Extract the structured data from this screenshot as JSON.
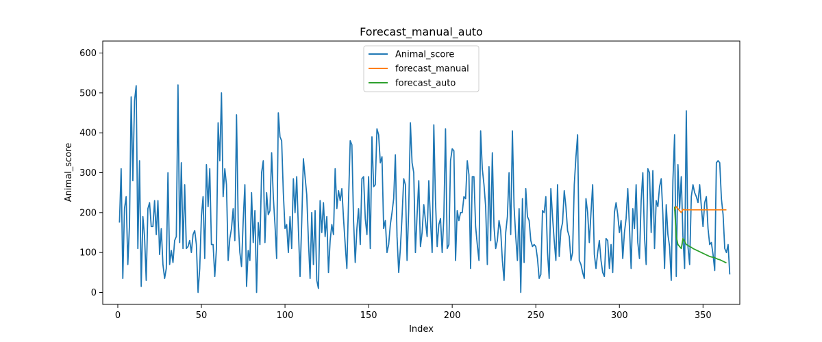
{
  "chart_data": {
    "type": "line",
    "title": "Forecast_manual_auto",
    "xlabel": "Index",
    "ylabel": "Animal_score",
    "xlim": [
      -9,
      372
    ],
    "ylim": [
      -30,
      630
    ],
    "xticks": [
      0,
      50,
      100,
      150,
      200,
      250,
      300,
      350
    ],
    "yticks": [
      0,
      100,
      200,
      300,
      400,
      500,
      600
    ],
    "grid": false,
    "legend_position": "upper center",
    "series": [
      {
        "name": "Animal_score",
        "color": "#1f77b4",
        "x_start": 1,
        "values": [
          175,
          310,
          35,
          210,
          240,
          70,
          170,
          490,
          280,
          480,
          518,
          110,
          330,
          15,
          190,
          140,
          30,
          210,
          225,
          165,
          165,
          230,
          145,
          230,
          95,
          160,
          70,
          35,
          60,
          300,
          70,
          105,
          75,
          130,
          140,
          520,
          125,
          325,
          110,
          270,
          110,
          115,
          130,
          100,
          145,
          155,
          120,
          0,
          60,
          190,
          240,
          85,
          320,
          215,
          310,
          120,
          120,
          40,
          110,
          425,
          330,
          500,
          240,
          310,
          270,
          80,
          135,
          160,
          210,
          130,
          445,
          180,
          100,
          65,
          180,
          270,
          15,
          105,
          80,
          250,
          125,
          205,
          0,
          175,
          120,
          300,
          330,
          125,
          250,
          195,
          205,
          350,
          240,
          170,
          85,
          450,
          390,
          380,
          250,
          160,
          170,
          100,
          190,
          110,
          285,
          200,
          290,
          160,
          40,
          175,
          335,
          290,
          245,
          130,
          35,
          200,
          70,
          205,
          30,
          10,
          230,
          150,
          225,
          140,
          190,
          50,
          130,
          170,
          145,
          310,
          210,
          255,
          230,
          260,
          185,
          120,
          60,
          230,
          380,
          370,
          180,
          75,
          160,
          210,
          120,
          285,
          290,
          185,
          145,
          290,
          110,
          390,
          265,
          270,
          410,
          395,
          325,
          340,
          160,
          180,
          100,
          120,
          170,
          200,
          235,
          345,
          140,
          50,
          110,
          190,
          285,
          270,
          80,
          210,
          425,
          325,
          300,
          100,
          195,
          280,
          115,
          150,
          220,
          180,
          140,
          280,
          180,
          100,
          420,
          230,
          115,
          170,
          185,
          100,
          190,
          410,
          110,
          120,
          330,
          360,
          355,
          80,
          205,
          180,
          200,
          200,
          240,
          235,
          330,
          295,
          60,
          290,
          290,
          165,
          120,
          80,
          405,
          310,
          270,
          215,
          70,
          315,
          130,
          350,
          165,
          110,
          130,
          180,
          155,
          80,
          30,
          150,
          190,
          300,
          145,
          405,
          215,
          140,
          80,
          210,
          0,
          235,
          75,
          260,
          190,
          180,
          130,
          115,
          120,
          115,
          85,
          35,
          45,
          205,
          200,
          240,
          100,
          35,
          260,
          190,
          130,
          80,
          270,
          90,
          155,
          175,
          255,
          215,
          155,
          140,
          80,
          100,
          270,
          340,
          395,
          80,
          70,
          50,
          35,
          235,
          200,
          125,
          200,
          270,
          95,
          60,
          100,
          130,
          80,
          50,
          40,
          135,
          130,
          60,
          120,
          50,
          200,
          225,
          195,
          150,
          180,
          85,
          150,
          185,
          260,
          165,
          60,
          210,
          160,
          270,
          125,
          85,
          230,
          300,
          140,
          70,
          310,
          300,
          150,
          305,
          110,
          230,
          215,
          265,
          285,
          195,
          60,
          220,
          145,
          115,
          30,
          280,
          395,
          40,
          320,
          210,
          290,
          140,
          60,
          455,
          115,
          70,
          240,
          270,
          250,
          240,
          225,
          270,
          215,
          165,
          225,
          240,
          160,
          120,
          125,
          95,
          55,
          325,
          330,
          325,
          235,
          195,
          110,
          100,
          120,
          45
        ]
      },
      {
        "name": "forecast_manual",
        "color": "#ff7f0e",
        "x": [
          333,
          334,
          335,
          336,
          337,
          338,
          339,
          340,
          341,
          342,
          343,
          344,
          345,
          346,
          347,
          348,
          349,
          350,
          351,
          352,
          353,
          354,
          355,
          356,
          357,
          358,
          359,
          360,
          361,
          362,
          363,
          364
        ],
        "values": [
          205,
          215,
          210,
          205,
          200,
          208,
          207,
          207,
          207,
          207,
          207,
          207,
          207,
          207,
          207,
          207,
          207,
          207,
          207,
          207,
          207,
          207,
          207,
          207,
          207,
          207,
          207,
          207,
          207,
          207,
          207,
          207
        ]
      },
      {
        "name": "forecast_auto",
        "color": "#2ca02c",
        "x": [
          333,
          334,
          335,
          336,
          337,
          338,
          339,
          340,
          341,
          342,
          343,
          344,
          345,
          346,
          347,
          348,
          349,
          350,
          351,
          352,
          353,
          354,
          355,
          356,
          357,
          358,
          359,
          360,
          361,
          362,
          363,
          364
        ],
        "values": [
          215,
          140,
          120,
          115,
          110,
          135,
          128,
          120,
          118,
          115,
          113,
          110,
          108,
          106,
          104,
          102,
          100,
          98,
          96,
          94,
          92,
          90,
          89,
          88,
          87,
          85,
          83,
          82,
          80,
          78,
          76,
          74
        ]
      }
    ]
  }
}
